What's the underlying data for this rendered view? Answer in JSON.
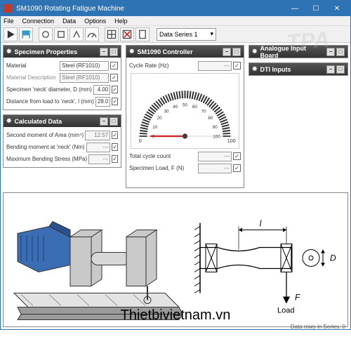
{
  "window": {
    "title": "SM1090 Rotating Fatigue Machine",
    "min": "—",
    "max": "☐",
    "close": "✕"
  },
  "menu": [
    "File",
    "Connection",
    "Data",
    "Options",
    "Help"
  ],
  "toolbar": {
    "series_label": "Data Series 1"
  },
  "panels": {
    "specimen": {
      "title": "Specimen Properties",
      "rows": [
        {
          "label": "Material",
          "value": "Steel (RF1010)",
          "type": "select",
          "checked": true
        },
        {
          "label": "Material Description",
          "value": "Steel (RF1010)",
          "type": "readonly",
          "checked": true
        },
        {
          "label": "Specimen 'neck' diameter,  D  (mm)",
          "value": "4.00",
          "type": "num",
          "checked": true
        },
        {
          "label": "Distance from load to 'neck',  l  (mm)",
          "value": "28.0",
          "type": "num",
          "checked": true
        }
      ]
    },
    "calculated": {
      "title": "Calculated Data",
      "rows": [
        {
          "label": "Second moment of Area   (mm⁴)",
          "value": "12.57",
          "type": "ro",
          "checked": true
        },
        {
          "label": "Bending moment at 'neck'   (Nm)",
          "value": "---",
          "type": "ro",
          "checked": true
        },
        {
          "label": "Maximum Bending Stress   (MPa)",
          "value": "---",
          "type": "ro",
          "checked": true
        }
      ]
    },
    "controller": {
      "title": "SM1090 Controller",
      "cycle_rate_label": "Cycle Rate   (Hz)",
      "cycle_rate_value": "---",
      "gauge": {
        "min": 0,
        "max": 100,
        "ticks": [
          0,
          10,
          20,
          30,
          40,
          50,
          60,
          70,
          80,
          90,
          100
        ],
        "needle": 0,
        "tick_color": "#333",
        "needle_color": "#d00"
      },
      "rows": [
        {
          "label": "Total cycle count",
          "value": "---",
          "checked": true
        },
        {
          "label": "Specimen Load,  F  (N)",
          "value": "---",
          "checked": true
        }
      ]
    },
    "analogue": {
      "title": "Analogue Input Board"
    },
    "dti": {
      "title": "DTI Inputs"
    }
  },
  "diagram": {
    "labels": {
      "l": "l",
      "D": "D",
      "F": "F",
      "load": "Load"
    },
    "colors": {
      "motor": "#3b6db5",
      "metal": "#c9c9c9",
      "metal_dark": "#9a9a9a",
      "outline": "#333",
      "base": "#e3e3e3"
    }
  },
  "status": {
    "rows": "Data rows in Series: 0"
  },
  "watermark": "Thietbivietnam.vn",
  "tpa": "TPA"
}
